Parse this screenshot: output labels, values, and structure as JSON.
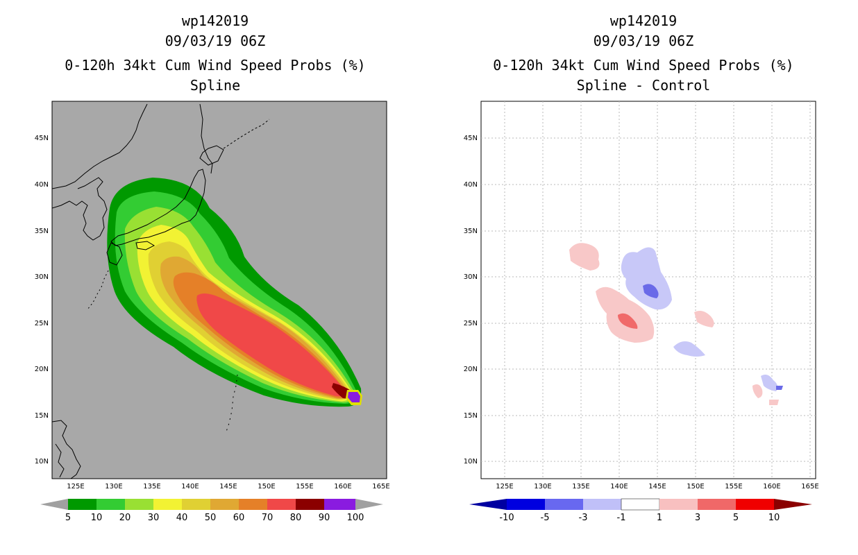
{
  "left": {
    "storm_id": "wp142019",
    "datetime": "09/03/19 06Z",
    "product": "0-120h 34kt Cum Wind Speed Probs (%)",
    "subtitle": "Spline",
    "lon_ticks": [
      "125E",
      "130E",
      "135E",
      "140E",
      "145E",
      "150E",
      "155E",
      "160E",
      "165E"
    ],
    "lat_ticks": [
      "45N",
      "40N",
      "35N",
      "30N",
      "25N",
      "20N",
      "15N",
      "10N"
    ],
    "colorbar": {
      "labels": [
        "5",
        "10",
        "20",
        "30",
        "40",
        "50",
        "60",
        "70",
        "80",
        "90",
        "100"
      ],
      "colors": [
        "#009900",
        "#33cc33",
        "#99e033",
        "#f2f233",
        "#e0d033",
        "#e0a833",
        "#e58028",
        "#f04848",
        "#8b0000",
        "#8a1be0"
      ],
      "end_color": "#a0a0a0"
    },
    "colors": {
      "background": "#a8a8a8",
      "outline": "#e0e000"
    }
  },
  "right": {
    "storm_id": "wp142019",
    "datetime": "09/03/19 06Z",
    "product": "0-120h 34kt Cum Wind Speed Probs (%)",
    "subtitle": "Spline - Control",
    "lon_ticks": [
      "125E",
      "130E",
      "135E",
      "140E",
      "145E",
      "150E",
      "155E",
      "160E",
      "165E"
    ],
    "lat_ticks": [
      "45N",
      "40N",
      "35N",
      "30N",
      "25N",
      "20N",
      "15N",
      "10N"
    ],
    "colorbar": {
      "labels": [
        "-10",
        "-5",
        "-3",
        "-1",
        "1",
        "3",
        "5",
        "10"
      ],
      "colors": [
        "#0000e0",
        "#6868f0",
        "#c0c0f8",
        "#ffffff",
        "#f8c0c0",
        "#f06868",
        "#f00000"
      ],
      "low_end": "#0000a0",
      "high_end": "#8b0000"
    },
    "colors": {
      "grid": "#b0b0b0",
      "blue_light": "#c8c8f8",
      "blue_mid": "#7878e8",
      "red_light": "#f8c8c8",
      "red_mid": "#f06a6a"
    }
  }
}
